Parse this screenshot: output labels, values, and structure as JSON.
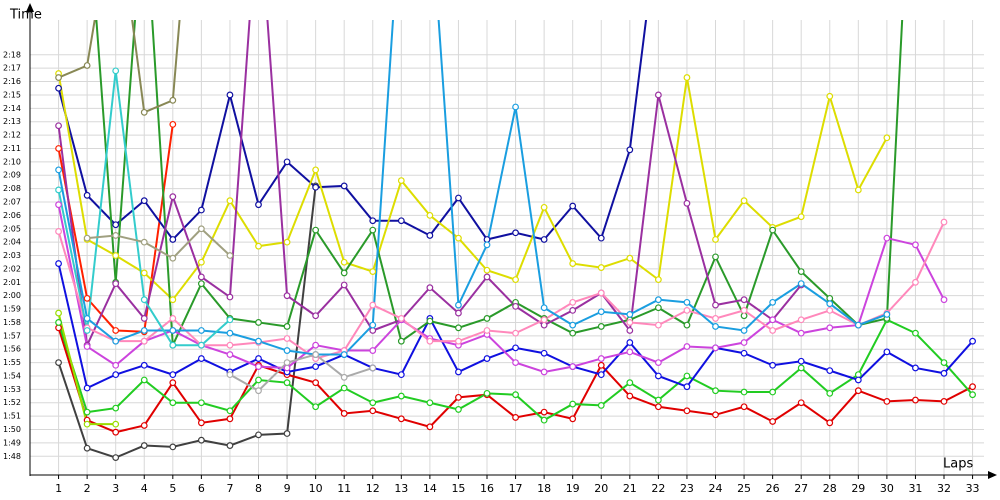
{
  "chart_data": {
    "type": "line",
    "y_label": "Time",
    "x_label": "Laps",
    "x": [
      1,
      2,
      3,
      4,
      5,
      6,
      7,
      8,
      9,
      10,
      11,
      12,
      13,
      14,
      15,
      16,
      17,
      18,
      19,
      20,
      21,
      22,
      23,
      24,
      25,
      26,
      27,
      28,
      29,
      30,
      31,
      32,
      33
    ],
    "xlim": [
      0,
      33.4
    ],
    "xticks": [
      1,
      2,
      3,
      4,
      5,
      6,
      7,
      8,
      9,
      10,
      11,
      12,
      13,
      14,
      15,
      16,
      17,
      18,
      19,
      20,
      21,
      22,
      23,
      24,
      25,
      26,
      27,
      28,
      29,
      30,
      31,
      32,
      33
    ],
    "ylim": [
      106.6,
      140.6
    ],
    "yticks": [
      {
        "value": 108,
        "label": "1:48"
      },
      {
        "value": 109,
        "label": "1:49"
      },
      {
        "value": 110,
        "label": "1:50"
      },
      {
        "value": 111,
        "label": "1:51"
      },
      {
        "value": 112,
        "label": "1:52"
      },
      {
        "value": 113,
        "label": "1:53"
      },
      {
        "value": 114,
        "label": "1:54"
      },
      {
        "value": 115,
        "label": "1:55"
      },
      {
        "value": 116,
        "label": "1:56"
      },
      {
        "value": 117,
        "label": "1:57"
      },
      {
        "value": 118,
        "label": "1:58"
      },
      {
        "value": 119,
        "label": "1:59"
      },
      {
        "value": 120,
        "label": "2:00"
      },
      {
        "value": 121,
        "label": "2:01"
      },
      {
        "value": 122,
        "label": "2:02"
      },
      {
        "value": 123,
        "label": "2:03"
      },
      {
        "value": 124,
        "label": "2:04"
      },
      {
        "value": 125,
        "label": "2:05"
      },
      {
        "value": 126,
        "label": "2:06"
      },
      {
        "value": 127,
        "label": "2:07"
      },
      {
        "value": 128,
        "label": "2:08"
      },
      {
        "value": 129,
        "label": "2:09"
      },
      {
        "value": 130,
        "label": "2:10"
      },
      {
        "value": 131,
        "label": "2:11"
      },
      {
        "value": 132,
        "label": "2:12"
      },
      {
        "value": 133,
        "label": "2:13"
      },
      {
        "value": 134,
        "label": "2:14"
      },
      {
        "value": 135,
        "label": "2:15"
      },
      {
        "value": 136,
        "label": "2:16"
      },
      {
        "value": 137,
        "label": "2:17"
      },
      {
        "value": 138,
        "label": "2:18"
      }
    ],
    "grid": true,
    "series": [
      {
        "color": "#404040",
        "values": [
          115.0,
          108.6,
          107.9,
          108.8,
          108.7,
          109.2,
          108.8,
          109.6,
          109.7,
          128.2,
          null,
          null,
          null,
          null,
          null,
          null,
          null,
          null,
          null,
          null,
          null,
          null,
          null,
          null,
          null,
          null,
          null,
          null,
          null,
          null,
          null,
          null,
          null
        ]
      },
      {
        "color": "#ff2000",
        "values": [
          131,
          119.8,
          117.4,
          117.3,
          132.8,
          null,
          null,
          null,
          null,
          null,
          null,
          null,
          null,
          null,
          null,
          null,
          null,
          null,
          null,
          null,
          null,
          null,
          null,
          null,
          null,
          null,
          null,
          null,
          null,
          null,
          null,
          null,
          null
        ]
      },
      {
        "color": "#e00000",
        "values": [
          117.6,
          110.7,
          109.8,
          110.3,
          113.5,
          110.5,
          110.8,
          114.8,
          114.1,
          113.5,
          111.2,
          111.4,
          110.8,
          110.2,
          112.4,
          112.6,
          110.9,
          111.3,
          110.8,
          114.8,
          112.5,
          111.7,
          111.4,
          111.1,
          111.7,
          110.6,
          112.0,
          110.5,
          112.9,
          112.1,
          112.2,
          112.1,
          113.2
        ]
      },
      {
        "color": "#22cc22",
        "values": [
          118,
          111.3,
          111.6,
          113.7,
          112,
          112,
          111.4,
          113.7,
          113.5,
          111.7,
          113.1,
          112,
          112.5,
          112,
          111.5,
          112.7,
          112.6,
          110.7,
          111.9,
          111.8,
          113.5,
          112.2,
          114,
          112.9,
          112.8,
          112.8,
          114.6,
          112.7,
          114.1,
          118.2,
          117.2,
          115,
          112.6
        ]
      },
      {
        "color": "#99dd00",
        "values": [
          118.7,
          110.4,
          110.4,
          null,
          null,
          null,
          null,
          null,
          null,
          null,
          null,
          null,
          null,
          null,
          null,
          null,
          null,
          null,
          null,
          null,
          null,
          null,
          null,
          null,
          null,
          null,
          null,
          null,
          null,
          null,
          null,
          null,
          null
        ]
      },
      {
        "color": "#1010e0",
        "values": [
          122.4,
          113.1,
          114.1,
          114.8,
          114.1,
          115.3,
          114.3,
          115.3,
          114.3,
          114.7,
          115.6,
          114.6,
          114.1,
          118.3,
          114.3,
          115.3,
          116.1,
          115.7,
          114.7,
          114.1,
          116.5,
          114,
          113.2,
          116.1,
          115.7,
          114.8,
          115.1,
          114.4,
          113.7,
          115.8,
          114.6,
          114.2,
          116.6
        ]
      },
      {
        "color": "#1010a0",
        "values": [
          135.5,
          127.5,
          125.3,
          127.1,
          124.2,
          126.4,
          135,
          126.8,
          130,
          128.1,
          128.2,
          125.6,
          125.6,
          124.5,
          127.3,
          124.2,
          124.7,
          124.2,
          126.7,
          124.3,
          130.9,
          148,
          null,
          null,
          null,
          null,
          null,
          null,
          null,
          null,
          null,
          null,
          null
        ]
      },
      {
        "color": "#dddd00",
        "values": [
          136.6,
          124.2,
          123,
          121.7,
          119.7,
          122.5,
          127.1,
          123.7,
          124,
          129.4,
          122.5,
          121.8,
          128.6,
          126,
          124.3,
          121.9,
          121.2,
          126.6,
          122.4,
          122.1,
          122.8,
          121.2,
          136.3,
          124.2,
          127.1,
          125.1,
          125.9,
          134.9,
          127.9,
          131.8,
          null,
          null,
          null
        ]
      },
      {
        "color": "#2a9a2a",
        "values": [
          null,
          150,
          121,
          150,
          116.3,
          120.9,
          118.3,
          118,
          117.7,
          124.9,
          121.7,
          124.9,
          116.6,
          118.1,
          117.6,
          118.3,
          119.5,
          118.3,
          117.2,
          117.7,
          118.2,
          119.1,
          117.8,
          122.9,
          118.5,
          124.9,
          121.8,
          119.8,
          117.8,
          118.3,
          160,
          null,
          null
        ]
      },
      {
        "color": "#9a30a0",
        "values": [
          132.7,
          116.3,
          120.9,
          118.3,
          127.4,
          121.4,
          119.9,
          150,
          120,
          118.5,
          120.8,
          117.4,
          118.2,
          120.6,
          118.7,
          121.4,
          119.2,
          117.8,
          118.9,
          120.2,
          117.4,
          135,
          126.9,
          119.3,
          119.7,
          118.2,
          120.8,
          null,
          null,
          null,
          null,
          null,
          null
        ]
      },
      {
        "color": "#cc44dd",
        "values": [
          126.8,
          116.2,
          114.8,
          116.6,
          117.4,
          116.3,
          115.6,
          114.7,
          114.6,
          116.3,
          115.9,
          115.9,
          118.2,
          116.8,
          116.3,
          117.1,
          115,
          114.3,
          114.7,
          115.3,
          115.8,
          115,
          116.2,
          116.1,
          116.5,
          118.2,
          117.2,
          117.6,
          117.8,
          124.3,
          123.8,
          119.7,
          null
        ]
      },
      {
        "color": "#ff88bb",
        "values": [
          124.8,
          117.6,
          116.6,
          116.6,
          118.3,
          116.3,
          116.3,
          116.5,
          116.8,
          115.3,
          115.9,
          119.3,
          118.3,
          116.6,
          116.6,
          117.4,
          117.2,
          118.2,
          119.5,
          120.2,
          118,
          117.8,
          118.9,
          118.3,
          118.9,
          117.4,
          118.2,
          118.9,
          117.8,
          118.7,
          121,
          125.5,
          null
        ]
      },
      {
        "color": "#1a9ee0",
        "values": [
          129.4,
          118.3,
          116.6,
          117.4,
          117.4,
          117.4,
          117.2,
          116.6,
          115.9,
          115.6,
          115.6,
          117.8,
          150,
          150,
          119.3,
          123.8,
          134.1,
          119.1,
          117.8,
          118.8,
          118.6,
          119.7,
          119.5,
          117.7,
          117.4,
          119.5,
          120.9,
          119.4,
          117.8,
          118.6,
          null,
          null,
          null
        ]
      },
      {
        "color": "#33cccc",
        "values": [
          127.9,
          117.4,
          136.8,
          119.7,
          116.3,
          116.3,
          118.2,
          null,
          null,
          null,
          null,
          null,
          null,
          null,
          null,
          null,
          null,
          null,
          null,
          null,
          null,
          null,
          null,
          null,
          null,
          null,
          null,
          null,
          null,
          null,
          null,
          null,
          null
        ]
      },
      {
        "color": "#888855",
        "values": [
          136.3,
          137.2,
          150,
          133.7,
          134.6,
          160,
          null,
          null,
          null,
          null,
          null,
          null,
          null,
          null,
          null,
          null,
          null,
          null,
          null,
          null,
          null,
          null,
          null,
          null,
          null,
          null,
          null,
          null,
          null,
          null,
          null,
          null,
          null
        ]
      },
      {
        "color": "#aaaaaa",
        "values": [
          null,
          null,
          null,
          null,
          null,
          null,
          114.1,
          112.9,
          115,
          115.6,
          113.9,
          114.6,
          null,
          null,
          null,
          null,
          null,
          null,
          null,
          null,
          null,
          null,
          null,
          null,
          null,
          null,
          null,
          null,
          null,
          null,
          null,
          null,
          null
        ]
      },
      {
        "color": "#a0a080",
        "values": [
          null,
          124.3,
          124.5,
          124,
          122.8,
          125,
          123,
          null,
          null,
          null,
          null,
          null,
          null,
          null,
          null,
          null,
          null,
          null,
          null,
          null,
          null,
          null,
          null,
          null,
          null,
          null,
          null,
          null,
          null,
          null,
          null,
          null,
          null
        ]
      }
    ]
  }
}
